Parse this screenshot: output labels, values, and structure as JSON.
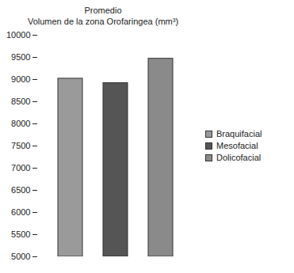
{
  "chart_data": {
    "type": "bar",
    "title": "Promedio",
    "subtitle": "Volumen de la zona Orofaringea (mm³)",
    "categories": [
      "Braquifacial",
      "Mesofacial",
      "Dolicofacial"
    ],
    "values": [
      9020,
      8920,
      9470
    ],
    "colors": [
      "#9a9a9a",
      "#555555",
      "#8a8a8a"
    ],
    "ylim": [
      5000,
      10000
    ],
    "yticks": [
      5000,
      5500,
      6000,
      6500,
      7000,
      7500,
      8000,
      8500,
      9000,
      9500,
      10000
    ],
    "grid": false,
    "legend": "right",
    "tick_labels": "y"
  }
}
